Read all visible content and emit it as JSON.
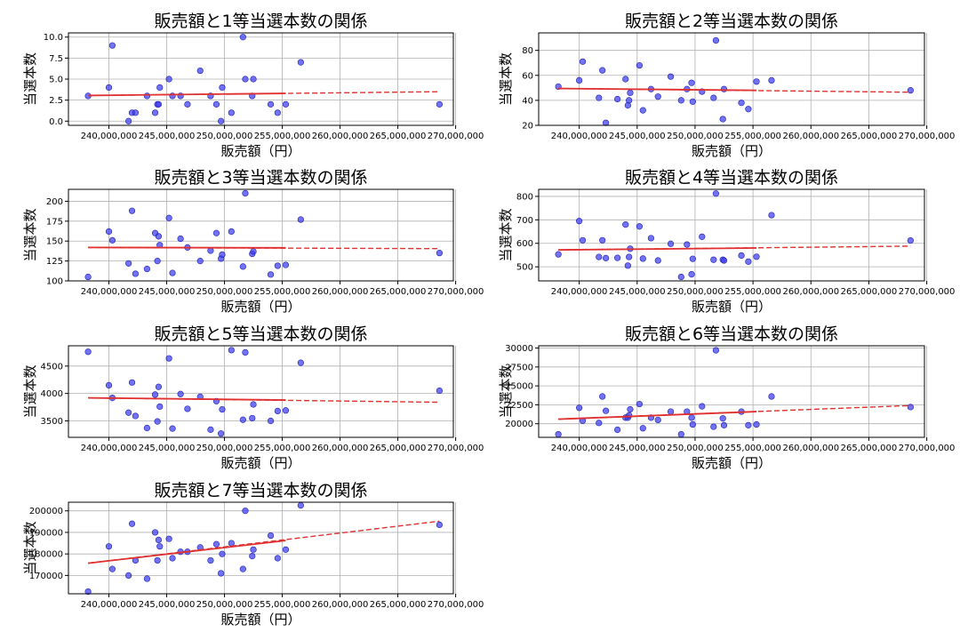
{
  "figure": {
    "xlabel": "販売額（円）",
    "ylabel": "当選本数"
  },
  "chart_data": [
    {
      "type": "scatter",
      "title": "販売額と1等当選本数の関係",
      "xlabel": "販売額（円）",
      "ylabel": "当選本数",
      "xlim": [
        236500000,
        269800000
      ],
      "ylim": [
        -0.5,
        10.5
      ],
      "xticks": [
        240000000,
        245000000,
        250000000,
        255000000,
        260000000,
        265000000,
        270000000
      ],
      "xtick_labels": [
        "240,000,000",
        "245,000,000",
        "250,000,000",
        "255,000,000",
        "260,000,000",
        "265,000,000",
        "270,000,000"
      ],
      "yticks": [
        0,
        2.5,
        5,
        7.5,
        10
      ],
      "ytick_labels": [
        "0.0",
        "2.5",
        "5.0",
        "7.5",
        "10.0"
      ],
      "x": [
        238200000,
        240000000,
        240300000,
        241700000,
        242000000,
        242300000,
        243300000,
        244000000,
        244200000,
        244300000,
        244400000,
        245200000,
        245500000,
        246200000,
        246800000,
        247900000,
        248800000,
        249300000,
        249700000,
        249800000,
        250600000,
        251600000,
        251800000,
        252400000,
        252500000,
        254000000,
        254600000,
        255300000,
        256600000,
        268600000
      ],
      "y": [
        3,
        4,
        9,
        0,
        1,
        1,
        3,
        1,
        2,
        2,
        4,
        5,
        3,
        3,
        2,
        6,
        3,
        2,
        0,
        4,
        1,
        10,
        5,
        3,
        5,
        2,
        1,
        2,
        7,
        2
      ],
      "trend_solid": [
        [
          238200000,
          3.05
        ],
        [
          255300000,
          3.3
        ]
      ],
      "trend_dashed": [
        [
          238200000,
          3.05
        ],
        [
          268600000,
          3.5
        ]
      ]
    },
    {
      "type": "scatter",
      "title": "販売額と2等当選本数の関係",
      "xlabel": "販売額（円）",
      "ylabel": "当選本数",
      "xlim": [
        236500000,
        269800000
      ],
      "ylim": [
        20,
        94
      ],
      "xticks": [
        240000000,
        245000000,
        250000000,
        255000000,
        260000000,
        265000000,
        270000000
      ],
      "xtick_labels": [
        "240,000,000",
        "245,000,000",
        "250,000,000",
        "255,000,000",
        "260,000,000",
        "265,000,000",
        "270,000,000"
      ],
      "yticks": [
        20,
        40,
        60,
        80
      ],
      "ytick_labels": [
        "20",
        "40",
        "60",
        "80"
      ],
      "x": [
        238200000,
        240000000,
        240300000,
        241700000,
        242000000,
        242300000,
        243300000,
        244000000,
        244200000,
        244300000,
        244400000,
        245200000,
        245500000,
        246200000,
        246800000,
        247900000,
        248800000,
        249300000,
        249700000,
        249800000,
        250600000,
        251600000,
        251800000,
        252400000,
        252500000,
        254000000,
        254600000,
        255300000,
        256600000,
        268600000
      ],
      "y": [
        51,
        56,
        71,
        42,
        64,
        22,
        41,
        57,
        36,
        40,
        46,
        68,
        32,
        49,
        43,
        59,
        40,
        49,
        54,
        39,
        47,
        42,
        88,
        25,
        49,
        38,
        33,
        55,
        56,
        48
      ],
      "trend_solid": [
        [
          238200000,
          49.5
        ],
        [
          255300000,
          48.0
        ]
      ],
      "trend_dashed": [
        [
          238200000,
          49.5
        ],
        [
          268600000,
          46.5
        ]
      ]
    },
    {
      "type": "scatter",
      "title": "販売額と3等当選本数の関係",
      "xlabel": "販売額（円）",
      "ylabel": "当選本数",
      "xlim": [
        236500000,
        269800000
      ],
      "ylim": [
        100,
        215
      ],
      "xticks": [
        240000000,
        245000000,
        250000000,
        255000000,
        260000000,
        265000000,
        270000000
      ],
      "xtick_labels": [
        "240,000,000",
        "245,000,000",
        "250,000,000",
        "255,000,000",
        "260,000,000",
        "265,000,000",
        "270,000,000"
      ],
      "yticks": [
        100,
        125,
        150,
        175,
        200
      ],
      "ytick_labels": [
        "100",
        "125",
        "150",
        "175",
        "200"
      ],
      "x": [
        238200000,
        240000000,
        240300000,
        241700000,
        242000000,
        242300000,
        243300000,
        244000000,
        244200000,
        244300000,
        244400000,
        245200000,
        245500000,
        246200000,
        246800000,
        247900000,
        248800000,
        249300000,
        249700000,
        249800000,
        250600000,
        251600000,
        251800000,
        252400000,
        252500000,
        254000000,
        254600000,
        255300000,
        256600000,
        268600000
      ],
      "y": [
        105,
        162,
        151,
        122,
        188,
        109,
        115,
        160,
        125,
        156,
        145,
        179,
        110,
        153,
        142,
        125,
        138,
        160,
        128,
        133,
        162,
        118,
        210,
        134,
        137,
        108,
        119,
        120,
        177,
        135
      ],
      "trend_solid": [
        [
          238200000,
          142
        ],
        [
          255300000,
          141.5
        ]
      ],
      "trend_dashed": [
        [
          238200000,
          142
        ],
        [
          268600000,
          140.5
        ]
      ]
    },
    {
      "type": "scatter",
      "title": "販売額と4等当選本数の関係",
      "xlabel": "販売額（円）",
      "ylabel": "当選本数",
      "xlim": [
        236500000,
        269800000
      ],
      "ylim": [
        440,
        830
      ],
      "xticks": [
        240000000,
        245000000,
        250000000,
        255000000,
        260000000,
        265000000,
        270000000
      ],
      "xtick_labels": [
        "240,000,000",
        "245,000,000",
        "250,000,000",
        "255,000,000",
        "260,000,000",
        "265,000,000",
        "270,000,000"
      ],
      "yticks": [
        500,
        600,
        700,
        800
      ],
      "ytick_labels": [
        "500",
        "600",
        "700",
        "800"
      ],
      "x": [
        238200000,
        240000000,
        240300000,
        241700000,
        242000000,
        242300000,
        243300000,
        244000000,
        244200000,
        244300000,
        244400000,
        245200000,
        245500000,
        246200000,
        246800000,
        247900000,
        248800000,
        249300000,
        249700000,
        249800000,
        250600000,
        251600000,
        251800000,
        252400000,
        252500000,
        254000000,
        254600000,
        255300000,
        256600000,
        268600000
      ],
      "y": [
        553,
        695,
        613,
        542,
        613,
        537,
        538,
        680,
        505,
        542,
        577,
        672,
        535,
        622,
        527,
        598,
        457,
        595,
        468,
        534,
        628,
        530,
        812,
        530,
        527,
        548,
        522,
        543,
        720,
        612
      ],
      "trend_solid": [
        [
          238200000,
          572
        ],
        [
          255300000,
          580
        ]
      ],
      "trend_dashed": [
        [
          238200000,
          572
        ],
        [
          268600000,
          588
        ]
      ]
    },
    {
      "type": "scatter",
      "title": "販売額と5等当選本数の関係",
      "xlabel": "販売額（円）",
      "ylabel": "当選本数",
      "xlim": [
        236500000,
        269800000
      ],
      "ylim": [
        3200,
        4870
      ],
      "xticks": [
        240000000,
        245000000,
        250000000,
        255000000,
        260000000,
        265000000,
        270000000
      ],
      "xtick_labels": [
        "240,000,000",
        "245,000,000",
        "250,000,000",
        "255,000,000",
        "260,000,000",
        "265,000,000",
        "270,000,000"
      ],
      "yticks": [
        3500,
        4000,
        4500
      ],
      "ytick_labels": [
        "3500",
        "4000",
        "4500"
      ],
      "x": [
        238200000,
        240000000,
        240300000,
        241700000,
        242000000,
        242300000,
        243300000,
        244000000,
        244200000,
        244300000,
        244400000,
        245200000,
        245500000,
        246200000,
        246800000,
        247900000,
        248800000,
        249300000,
        249700000,
        249800000,
        250600000,
        251600000,
        251800000,
        252400000,
        252500000,
        254000000,
        254600000,
        255300000,
        256600000,
        268600000
      ],
      "y": [
        4760,
        4150,
        3920,
        3650,
        4200,
        3590,
        3370,
        3980,
        3490,
        4120,
        3760,
        4640,
        3360,
        3990,
        3720,
        3940,
        3340,
        3860,
        3270,
        3710,
        4790,
        3520,
        4750,
        3550,
        3800,
        3500,
        3680,
        3690,
        4560,
        4050
      ],
      "trend_solid": [
        [
          238200000,
          3920
        ],
        [
          255300000,
          3880
        ]
      ],
      "trend_dashed": [
        [
          238200000,
          3920
        ],
        [
          268600000,
          3840
        ]
      ]
    },
    {
      "type": "scatter",
      "title": "販売額と6等当選本数の関係",
      "xlabel": "販売額（円）",
      "ylabel": "当選本数",
      "xlim": [
        236500000,
        269800000
      ],
      "ylim": [
        18200,
        30300
      ],
      "xticks": [
        240000000,
        245000000,
        250000000,
        255000000,
        260000000,
        265000000,
        270000000
      ],
      "xtick_labels": [
        "240,000,000",
        "245,000,000",
        "250,000,000",
        "255,000,000",
        "260,000,000",
        "265,000,000",
        "270,000,000"
      ],
      "yticks": [
        20000,
        22500,
        25000,
        27500,
        30000
      ],
      "ytick_labels": [
        "20000",
        "22500",
        "25000",
        "27500",
        "30000"
      ],
      "x": [
        238200000,
        240000000,
        240300000,
        241700000,
        242000000,
        242300000,
        243300000,
        244000000,
        244200000,
        244300000,
        244400000,
        245200000,
        245500000,
        246200000,
        246800000,
        247900000,
        248800000,
        249300000,
        249700000,
        249800000,
        250600000,
        251600000,
        251800000,
        252400000,
        252500000,
        254000000,
        254600000,
        255300000,
        256600000,
        268600000
      ],
      "y": [
        18600,
        22100,
        20400,
        20100,
        23600,
        21700,
        19200,
        20800,
        20800,
        21100,
        21900,
        22600,
        19400,
        20800,
        20500,
        21600,
        18600,
        21600,
        20800,
        19900,
        22300,
        19600,
        29700,
        20700,
        19800,
        21600,
        19800,
        19900,
        23600,
        22200
      ],
      "trend_solid": [
        [
          238200000,
          20600
        ],
        [
          255300000,
          21600
        ]
      ],
      "trend_dashed": [
        [
          238200000,
          20600
        ],
        [
          268600000,
          22400
        ]
      ]
    },
    {
      "type": "scatter",
      "title": "販売額と7等当選本数の関係",
      "xlabel": "販売額（円）",
      "ylabel": "当選本数",
      "xlim": [
        236500000,
        269800000
      ],
      "ylim": [
        161500,
        204000
      ],
      "xticks": [
        240000000,
        245000000,
        250000000,
        255000000,
        260000000,
        265000000,
        270000000
      ],
      "xtick_labels": [
        "240,000,000",
        "245,000,000",
        "250,000,000",
        "255,000,000",
        "260,000,000",
        "265,000,000",
        "270,000,000"
      ],
      "yticks": [
        170000,
        180000,
        190000,
        200000
      ],
      "ytick_labels": [
        "170000",
        "180000",
        "190000",
        "200000"
      ],
      "x": [
        238200000,
        240000000,
        240300000,
        241700000,
        242000000,
        242300000,
        243300000,
        244000000,
        244200000,
        244300000,
        244400000,
        245200000,
        245500000,
        246200000,
        246800000,
        247900000,
        248800000,
        249300000,
        249700000,
        249800000,
        250600000,
        251600000,
        251800000,
        252400000,
        252500000,
        254000000,
        254600000,
        255300000,
        256600000,
        268600000
      ],
      "y": [
        162500,
        183500,
        173000,
        170000,
        194000,
        177000,
        168500,
        190000,
        177000,
        186500,
        183500,
        187000,
        178000,
        181000,
        181000,
        183000,
        177000,
        184500,
        171000,
        180000,
        185000,
        173000,
        200000,
        179000,
        182000,
        188500,
        178000,
        182000,
        202500,
        193500
      ],
      "trend_solid": [
        [
          238200000,
          175700
        ],
        [
          255300000,
          186200
        ]
      ],
      "trend_dashed": [
        [
          238200000,
          175700
        ],
        [
          268600000,
          195200
        ]
      ]
    }
  ]
}
